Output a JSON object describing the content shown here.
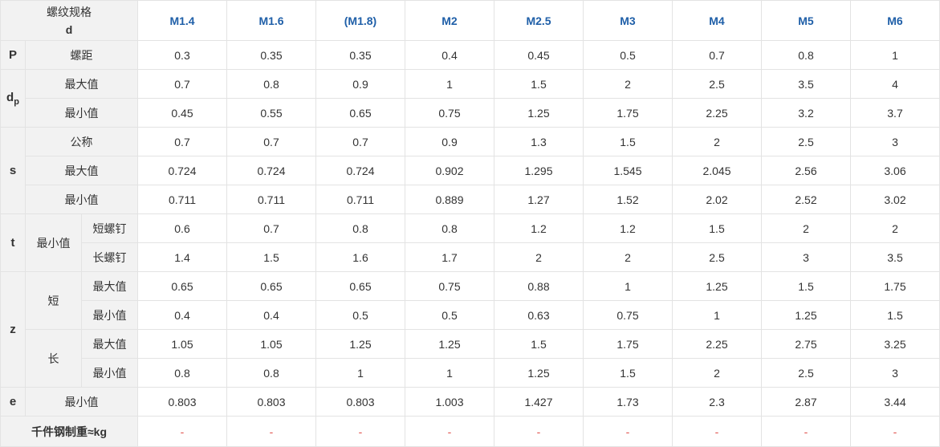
{
  "header": {
    "title_line1": "螺纹规格",
    "title_line2": "d",
    "sizes": [
      "M1.4",
      "M1.6",
      "(M1.8)",
      "M2",
      "M2.5",
      "M3",
      "M4",
      "M5",
      "M6"
    ]
  },
  "groups": {
    "P": "P",
    "dp_main": "d",
    "dp_sub": "p",
    "s": "s",
    "t": "t",
    "z": "z",
    "e": "e",
    "t_min": "最小值",
    "z_short": "短",
    "z_long": "长",
    "weight": "千件钢制重≈kg"
  },
  "rows": [
    {
      "label": "螺距",
      "values": [
        "0.3",
        "0.35",
        "0.35",
        "0.4",
        "0.45",
        "0.5",
        "0.7",
        "0.8",
        "1"
      ]
    },
    {
      "label": "最大值",
      "values": [
        "0.7",
        "0.8",
        "0.9",
        "1",
        "1.5",
        "2",
        "2.5",
        "3.5",
        "4"
      ]
    },
    {
      "label": "最小值",
      "values": [
        "0.45",
        "0.55",
        "0.65",
        "0.75",
        "1.25",
        "1.75",
        "2.25",
        "3.2",
        "3.7"
      ]
    },
    {
      "label": "公称",
      "values": [
        "0.7",
        "0.7",
        "0.7",
        "0.9",
        "1.3",
        "1.5",
        "2",
        "2.5",
        "3"
      ]
    },
    {
      "label": "最大值",
      "values": [
        "0.724",
        "0.724",
        "0.724",
        "0.902",
        "1.295",
        "1.545",
        "2.045",
        "2.56",
        "3.06"
      ]
    },
    {
      "label": "最小值",
      "values": [
        "0.711",
        "0.711",
        "0.711",
        "0.889",
        "1.27",
        "1.52",
        "2.02",
        "2.52",
        "3.02"
      ]
    },
    {
      "label": "短螺钉",
      "values": [
        "0.6",
        "0.7",
        "0.8",
        "0.8",
        "1.2",
        "1.2",
        "1.5",
        "2",
        "2"
      ]
    },
    {
      "label": "长螺钉",
      "values": [
        "1.4",
        "1.5",
        "1.6",
        "1.7",
        "2",
        "2",
        "2.5",
        "3",
        "3.5"
      ]
    },
    {
      "label": "最大值",
      "values": [
        "0.65",
        "0.65",
        "0.65",
        "0.75",
        "0.88",
        "1",
        "1.25",
        "1.5",
        "1.75"
      ]
    },
    {
      "label": "最小值",
      "values": [
        "0.4",
        "0.4",
        "0.5",
        "0.5",
        "0.63",
        "0.75",
        "1",
        "1.25",
        "1.5"
      ]
    },
    {
      "label": "最大值",
      "values": [
        "1.05",
        "1.05",
        "1.25",
        "1.25",
        "1.5",
        "1.75",
        "2.25",
        "2.75",
        "3.25"
      ]
    },
    {
      "label": "最小值",
      "values": [
        "0.8",
        "0.8",
        "1",
        "1",
        "1.25",
        "1.5",
        "2",
        "2.5",
        "3"
      ]
    },
    {
      "label": "最小值",
      "values": [
        "0.803",
        "0.803",
        "0.803",
        "1.003",
        "1.427",
        "1.73",
        "2.3",
        "2.87",
        "3.44"
      ]
    },
    {
      "label": "",
      "values": [
        "-",
        "-",
        "-",
        "-",
        "-",
        "-",
        "-",
        "-",
        "-"
      ]
    }
  ]
}
